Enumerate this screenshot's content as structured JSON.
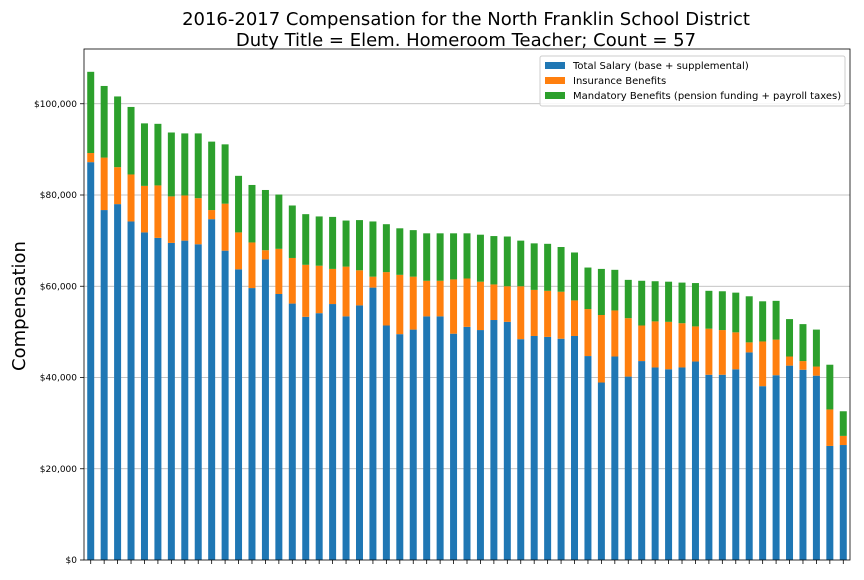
{
  "chart_data": {
    "type": "bar",
    "stacked": true,
    "title": "2016-2017 Compensation for the North Franklin School District",
    "subtitle": "Duty Title = Elem. Homeroom Teacher; Count = 57",
    "xlabel": "",
    "ylabel": "Compensation",
    "ylim": [
      0,
      112000
    ],
    "y_ticks": [
      0,
      20000,
      40000,
      60000,
      80000,
      100000
    ],
    "y_tick_labels": [
      "$0",
      "$20,000",
      "$40,000",
      "$60,000",
      "$80,000",
      "$100,000"
    ],
    "grid": "horizontal",
    "legend_position": "top-right",
    "category_count": 57,
    "series": [
      {
        "name": "Total Salary (base + supplemental)",
        "color": "#1f77b4",
        "values": [
          87200,
          76700,
          78000,
          74200,
          71800,
          70600,
          69500,
          70000,
          69200,
          74700,
          67800,
          63700,
          59600,
          65900,
          58300,
          56200,
          53300,
          54100,
          56100,
          53400,
          55800,
          59700,
          51400,
          49500,
          50500,
          53400,
          53400,
          49600,
          51100,
          50400,
          52600,
          52200,
          48400,
          49100,
          48900,
          48500,
          49100,
          44700,
          38900,
          44600,
          40200,
          43600,
          42200,
          41800,
          42200,
          43500,
          40600,
          40600,
          41800,
          45500,
          38100,
          40500,
          42600,
          41700,
          40400,
          25000,
          25200
        ]
      },
      {
        "name": "Insurance Benefits",
        "color": "#ff7f0e",
        "values": [
          2000,
          11500,
          8100,
          10300,
          10200,
          11500,
          10200,
          9900,
          10100,
          2000,
          10300,
          8100,
          10000,
          2000,
          9900,
          10000,
          11400,
          10400,
          7700,
          10900,
          7700,
          2400,
          11700,
          13000,
          11600,
          7800,
          7800,
          11900,
          10600,
          10600,
          7800,
          7800,
          11600,
          10100,
          10100,
          10300,
          7800,
          10300,
          14800,
          10100,
          12800,
          7800,
          10100,
          10400,
          9700,
          7700,
          10100,
          9800,
          8100,
          2200,
          9800,
          7800,
          2000,
          1900,
          2000,
          8000,
          2000
        ]
      },
      {
        "name": "Mandatory Benefits (pension funding + payroll taxes)",
        "color": "#2ca02c",
        "values": [
          17800,
          15700,
          15500,
          14800,
          13700,
          13500,
          14000,
          13600,
          14200,
          15000,
          13000,
          12400,
          12600,
          13200,
          11900,
          11500,
          11100,
          10800,
          11400,
          10100,
          11000,
          12100,
          10500,
          10200,
          10200,
          10400,
          10400,
          10100,
          9900,
          10300,
          10600,
          10900,
          10000,
          10200,
          10300,
          9800,
          10500,
          9100,
          10100,
          8900,
          8400,
          9800,
          8800,
          8800,
          8900,
          9500,
          8300,
          8500,
          8700,
          10100,
          8800,
          8500,
          8200,
          8100,
          8100,
          9800,
          5400
        ]
      }
    ]
  }
}
